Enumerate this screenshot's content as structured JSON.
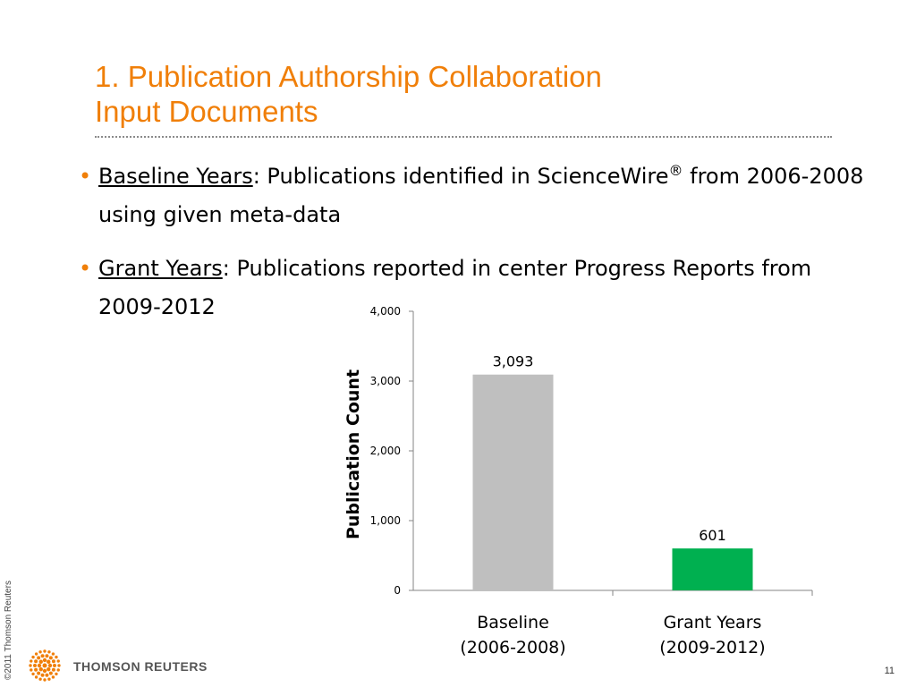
{
  "slide": {
    "title_line1": "1. Publication Authorship Collaboration",
    "title_line2": "Input Documents",
    "bullets": [
      {
        "term": "Baseline Years",
        "text_a": ": Publications identified in ScienceWire",
        "sup": "®",
        "text_b": " from 2006-2008 using given meta-data"
      },
      {
        "term": "Grant Years",
        "text_a": ": Publications reported in center Progress Reports from 2009-2012"
      }
    ],
    "copyright": "©2011 Thomson Reuters",
    "logo_text": "THOMSON REUTERS",
    "page_number": "11",
    "colors": {
      "accent": "#f07f09",
      "baseline_bar": "#bfbfbf",
      "grant_bar": "#00b050"
    }
  },
  "chart_data": {
    "type": "bar",
    "categories": [
      "Baseline (2006-2008)",
      "Grant Years (2009-2012)"
    ],
    "category_lines": [
      [
        "Baseline",
        "(2006-2008)"
      ],
      [
        "Grant Years",
        "(2009-2012)"
      ]
    ],
    "values": [
      3093,
      601
    ],
    "value_labels": [
      "3,093",
      "601"
    ],
    "ylabel": "Publication Count",
    "ylim": [
      0,
      4000
    ],
    "yticks": [
      0,
      1000,
      2000,
      3000,
      4000
    ],
    "ytick_labels": [
      "0",
      "1,000",
      "2,000",
      "3,000",
      "4,000"
    ],
    "grid": false,
    "legend": "none"
  }
}
